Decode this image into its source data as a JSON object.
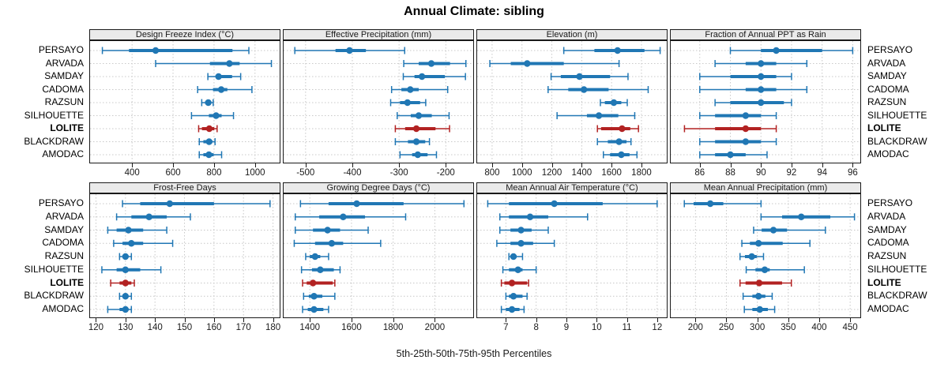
{
  "title": "Annual Climate: sibling",
  "caption": "5th-25th-50th-75th-95th Percentiles",
  "sites": [
    "PERSAYO",
    "ARVADA",
    "SAMDAY",
    "CADOMA",
    "RAZSUN",
    "SILHOUETTE",
    "LOLITE",
    "BLACKDRAW",
    "AMODAC"
  ],
  "highlight_site": "LOLITE",
  "percentile_labels": [
    "5th",
    "25th",
    "50th",
    "75th",
    "95th"
  ],
  "colors": {
    "series": "#2077b4",
    "highlight": "#b22222",
    "strip_bg": "#eaeaea",
    "panel_border": "#1a1a1a",
    "grid": "#c8c8c8",
    "text": "#000000"
  },
  "chart_data": [
    {
      "type": "dotplot-percentiles",
      "title": "Design Freeze Index (°C)",
      "xlim": [
        195,
        1128
      ],
      "ticks": [
        400,
        600,
        800,
        1000
      ],
      "series": {
        "PERSAYO": [
          255,
          385,
          515,
          890,
          970
        ],
        "ARVADA": [
          515,
          780,
          875,
          925,
          1080
        ],
        "SAMDAY": [
          770,
          810,
          822,
          888,
          930
        ],
        "CADOMA": [
          720,
          795,
          835,
          865,
          985
        ],
        "RAZSUN": [
          740,
          757,
          772,
          786,
          796
        ],
        "SILHOUETTE": [
          690,
          775,
          810,
          837,
          895
        ],
        "LOLITE": [
          725,
          741,
          777,
          801,
          815
        ],
        "BLACKDRAW": [
          728,
          748,
          776,
          792,
          805
        ],
        "AMODAC": [
          728,
          748,
          775,
          798,
          837
        ]
      }
    },
    {
      "type": "dotplot-percentiles",
      "title": "Effective Precipitation (mm)",
      "xlim": [
        -547,
        -138
      ],
      "ticks": [
        -500,
        -400,
        -300,
        -200
      ],
      "series": {
        "PERSAYO": [
          -523,
          -436,
          -406,
          -371,
          -288
        ],
        "ARVADA": [
          -290,
          -258,
          -231,
          -191,
          -157
        ],
        "SAMDAY": [
          -291,
          -267,
          -251,
          -202,
          -158
        ],
        "CADOMA": [
          -316,
          -295,
          -276,
          -258,
          -196
        ],
        "RAZSUN": [
          -318,
          -298,
          -282,
          -255,
          -243
        ],
        "SILHOUETTE": [
          -304,
          -275,
          -258,
          -230,
          -193
        ],
        "LOLITE": [
          -308,
          -287,
          -263,
          -222,
          -192
        ],
        "BLACKDRAW": [
          -308,
          -281,
          -263,
          -244,
          -235
        ],
        "AMODAC": [
          -298,
          -272,
          -260,
          -239,
          -220
        ]
      }
    },
    {
      "type": "dotplot-percentiles",
      "title": "Elevation (m)",
      "xlim": [
        700,
        1980
      ],
      "ticks": [
        800,
        1000,
        1200,
        1400,
        1600,
        1800
      ],
      "series": {
        "PERSAYO": [
          1280,
          1485,
          1640,
          1820,
          1925
        ],
        "ARVADA": [
          785,
          925,
          1035,
          1280,
          1650
        ],
        "SAMDAY": [
          1195,
          1260,
          1385,
          1590,
          1710
        ],
        "CADOMA": [
          1175,
          1310,
          1415,
          1580,
          1845
        ],
        "RAZSUN": [
          1525,
          1555,
          1615,
          1665,
          1705
        ],
        "SILHOUETTE": [
          1235,
          1435,
          1515,
          1645,
          1755
        ],
        "LOLITE": [
          1505,
          1530,
          1670,
          1725,
          1780
        ],
        "BLACKDRAW": [
          1505,
          1575,
          1650,
          1700,
          1730
        ],
        "AMODAC": [
          1545,
          1590,
          1665,
          1720,
          1770
        ]
      }
    },
    {
      "type": "dotplot-percentiles",
      "title": "Fraction of Annual PPT as Rain",
      "xlim": [
        84.1,
        96.6
      ],
      "ticks": [
        86,
        88,
        90,
        92,
        94,
        96
      ],
      "series": {
        "PERSAYO": [
          88,
          90,
          91,
          94,
          96
        ],
        "ARVADA": [
          87,
          89,
          90,
          91,
          93
        ],
        "SAMDAY": [
          86,
          88,
          90,
          91,
          92
        ],
        "CADOMA": [
          86,
          89,
          90,
          91,
          93
        ],
        "RAZSUN": [
          87,
          88,
          90,
          91.5,
          92
        ],
        "SILHOUETTE": [
          86,
          87,
          89,
          90,
          91
        ],
        "LOLITE": [
          85,
          87,
          89,
          90,
          91
        ],
        "BLACKDRAW": [
          86,
          87,
          89,
          90,
          91
        ],
        "AMODAC": [
          86,
          87,
          88,
          89,
          90.4
        ]
      }
    },
    {
      "type": "dotplot-percentiles",
      "title": "Frost-Free Days",
      "xlim": [
        118,
        182.8
      ],
      "ticks": [
        120,
        130,
        140,
        150,
        160,
        170,
        180
      ],
      "series": {
        "PERSAYO": [
          129,
          135,
          145,
          160,
          179
        ],
        "ARVADA": [
          127,
          132,
          138,
          144,
          152
        ],
        "SAMDAY": [
          124,
          127,
          131,
          136,
          144
        ],
        "CADOMA": [
          126,
          129,
          132,
          136,
          146
        ],
        "RAZSUN": [
          128,
          129,
          130,
          131,
          132
        ],
        "SILHOUETTE": [
          122,
          127,
          130,
          135,
          142
        ],
        "LOLITE": [
          125,
          128,
          130,
          132,
          133
        ],
        "BLACKDRAW": [
          128,
          129,
          130,
          131,
          132
        ],
        "AMODAC": [
          124,
          128,
          130,
          131,
          132
        ]
      }
    },
    {
      "type": "dotplot-percentiles",
      "title": "Growing Degree Days (°C)",
      "xlim": [
        1274,
        2192
      ],
      "ticks": [
        1400,
        1600,
        1800,
        2000
      ],
      "series": {
        "PERSAYO": [
          1355,
          1490,
          1625,
          1850,
          2140
        ],
        "ARVADA": [
          1330,
          1445,
          1560,
          1665,
          1860
        ],
        "SAMDAY": [
          1330,
          1415,
          1485,
          1545,
          1680
        ],
        "CADOMA": [
          1325,
          1425,
          1505,
          1560,
          1740
        ],
        "RAZSUN": [
          1380,
          1400,
          1425,
          1450,
          1490
        ],
        "SILHOUETTE": [
          1360,
          1410,
          1450,
          1515,
          1545
        ],
        "LOLITE": [
          1365,
          1385,
          1415,
          1510,
          1520
        ],
        "BLACKDRAW": [
          1370,
          1395,
          1420,
          1460,
          1520
        ],
        "AMODAC": [
          1365,
          1390,
          1420,
          1465,
          1490
        ]
      }
    },
    {
      "type": "dotplot-percentiles",
      "title": "Mean Annual Air Temperature (°C)",
      "xlim": [
        6.05,
        12.37
      ],
      "ticks": [
        7,
        8,
        9,
        10,
        11,
        12
      ],
      "series": {
        "PERSAYO": [
          6.4,
          7.1,
          8.6,
          10.2,
          12.0
        ],
        "ARVADA": [
          6.8,
          7.1,
          7.8,
          8.4,
          9.7
        ],
        "SAMDAY": [
          6.8,
          7.15,
          7.5,
          7.85,
          8.4
        ],
        "CADOMA": [
          6.7,
          7.15,
          7.5,
          7.9,
          8.6
        ],
        "RAZSUN": [
          7.1,
          7.15,
          7.25,
          7.35,
          7.55
        ],
        "SILHOUETTE": [
          6.9,
          7.1,
          7.4,
          7.55,
          8.0
        ],
        "LOLITE": [
          6.85,
          6.95,
          7.2,
          7.7,
          7.75
        ],
        "BLACKDRAW": [
          7.0,
          7.1,
          7.25,
          7.55,
          7.7
        ],
        "AMODAC": [
          6.85,
          7.0,
          7.2,
          7.45,
          7.6
        ]
      }
    },
    {
      "type": "dotplot-percentiles",
      "title": "Mean Annual Precipitation (mm)",
      "xlim": [
        160,
        469
      ],
      "ticks": [
        200,
        250,
        300,
        350,
        400,
        450
      ],
      "series": {
        "PERSAYO": [
          182,
          197,
          224,
          245,
          306
        ],
        "ARVADA": [
          306,
          340,
          371,
          418,
          457
        ],
        "SAMDAY": [
          294,
          307,
          326,
          348,
          410
        ],
        "CADOMA": [
          275,
          288,
          302,
          341,
          385
        ],
        "RAZSUN": [
          272,
          280,
          291,
          299,
          310
        ],
        "SILHOUETTE": [
          282,
          297,
          312,
          320,
          376
        ],
        "LOLITE": [
          272,
          281,
          303,
          340,
          355
        ],
        "BLACKDRAW": [
          277,
          292,
          302,
          313,
          324
        ],
        "AMODAC": [
          279,
          292,
          304,
          317,
          328
        ]
      }
    }
  ]
}
